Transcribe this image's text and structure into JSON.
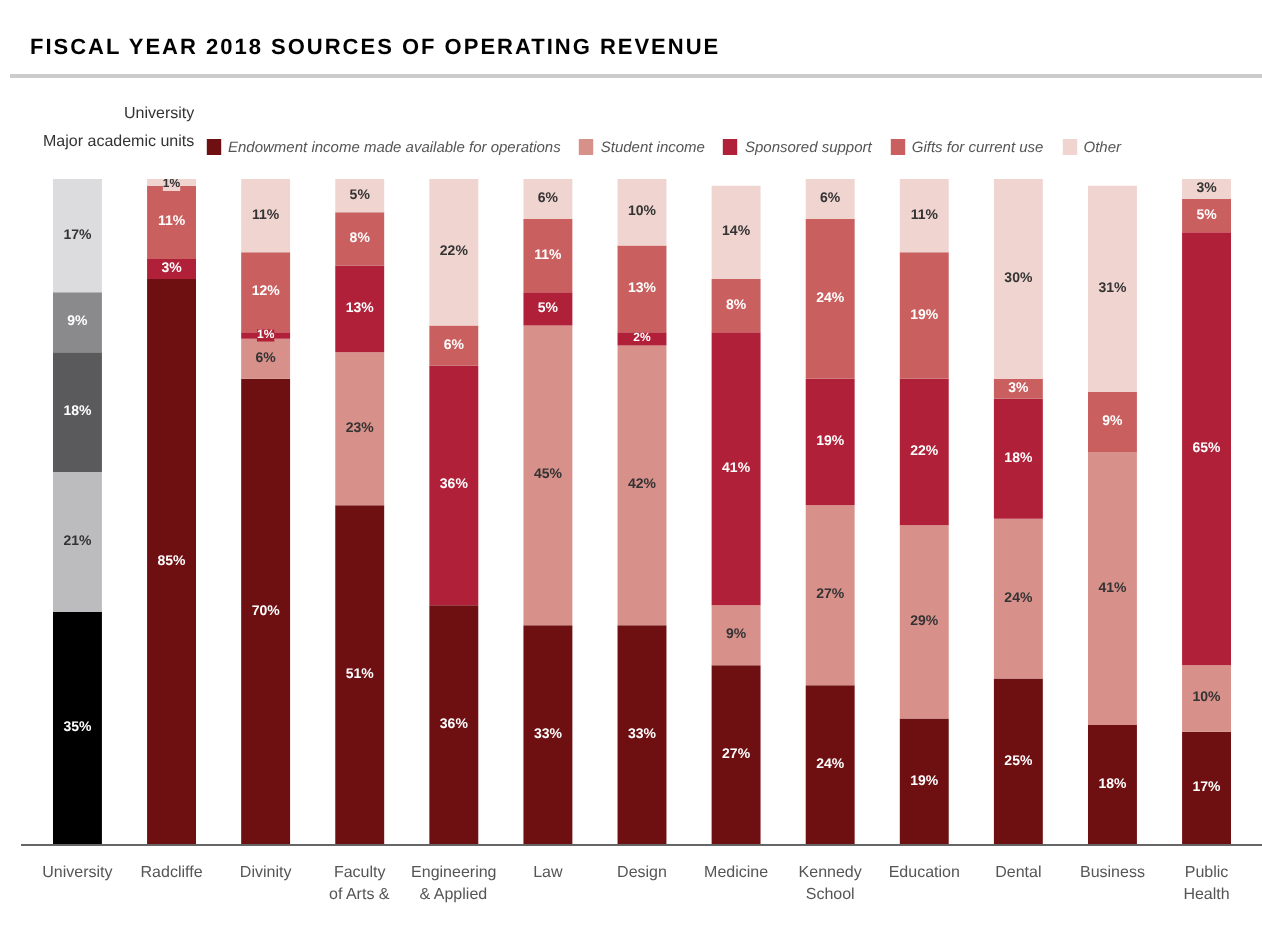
{
  "chart_data": {
    "type": "bar",
    "stacked": true,
    "title": "FISCAL YEAR 2018 SOURCES OF OPERATING REVENUE",
    "annotations": [
      "University",
      "Major academic units"
    ],
    "legend": "top",
    "tick_labels": "x",
    "grid": false,
    "ylim": [
      0,
      100
    ],
    "categories": [
      "University",
      "Radcliffe",
      "Divinity",
      "Faculty\nof Arts &",
      "Engineering\n& Applied",
      "Law",
      "Design",
      "Medicine",
      "Kennedy\nSchool",
      "Education",
      "Dental",
      "Business",
      "Public\nHealth"
    ],
    "series": [
      {
        "name": "Endowment income made available for operations",
        "color": "#6e0f12",
        "colors": [
          "#000000",
          "#6e0f12",
          "#6e0f12",
          "#6e0f12",
          "#6e0f12",
          "#6e0f12",
          "#6e0f12",
          "#6e0f12",
          "#6e0f12",
          "#6e0f12",
          "#6e0f12",
          "#6e0f12",
          "#6e0f12"
        ],
        "values": [
          35,
          85,
          70,
          51,
          36,
          33,
          33,
          27,
          24,
          19,
          25,
          18,
          17
        ],
        "value_labels": [
          "35%",
          "85%",
          "70%",
          "51%",
          "36%",
          "33%",
          "33%",
          "27%",
          "24%",
          "19%",
          "25%",
          "18%",
          "17%"
        ]
      },
      {
        "name": "Student income",
        "color": "#d8908a",
        "colors": [
          "#bcbcbe",
          "#d8908a",
          "#d8908a",
          "#d8908a",
          "#d8908a",
          "#d8908a",
          "#d8908a",
          "#d8908a",
          "#d8908a",
          "#d8908a",
          "#d8908a",
          "#d8908a",
          "#d8908a"
        ],
        "values": [
          21,
          null,
          6,
          23,
          null,
          45,
          42,
          9,
          27,
          29,
          24,
          41,
          10
        ],
        "value_labels": [
          "21%",
          null,
          "6%",
          "23%",
          null,
          "45%",
          "42%",
          "9%",
          "27%",
          "29%",
          "24%",
          "41%",
          "10%"
        ]
      },
      {
        "name": "Sponsored support",
        "color": "#b02038",
        "colors": [
          "#5a5a5c",
          "#b02038",
          "#b02038",
          "#b02038",
          "#b02038",
          "#b02038",
          "#b02038",
          "#b02038",
          "#b02038",
          "#b02038",
          "#b02038",
          "#b02038",
          "#b02038"
        ],
        "values": [
          18,
          3,
          1,
          13,
          36,
          5,
          2,
          41,
          19,
          22,
          18,
          null,
          65
        ],
        "value_labels": [
          "18%",
          "3%",
          "1%",
          "13%",
          "36%",
          "5%",
          "2%",
          "41%",
          "19%",
          "22%",
          "18%",
          null,
          "65%"
        ]
      },
      {
        "name": "Gifts for current use",
        "color": "#c9605f",
        "colors": [
          "#8a8a8c",
          "#c9605f",
          "#c9605f",
          "#c9605f",
          "#c9605f",
          "#c9605f",
          "#c9605f",
          "#c9605f",
          "#c9605f",
          "#c9605f",
          "#c9605f",
          "#c9605f",
          "#c9605f"
        ],
        "values": [
          9,
          11,
          12,
          8,
          6,
          11,
          13,
          8,
          24,
          19,
          3,
          9,
          5
        ],
        "value_labels": [
          "9%",
          "11%",
          "12%",
          "8%",
          "6%",
          "11%",
          "13%",
          "8%",
          "24%",
          "19%",
          "3%",
          "9%",
          "5%"
        ]
      },
      {
        "name": "Other",
        "color": "#f0d4d0",
        "colors": [
          "#dcdcde",
          "#f0d4d0",
          "#f0d4d0",
          "#f0d4d0",
          "#f0d4d0",
          "#f0d4d0",
          "#f0d4d0",
          "#f0d4d0",
          "#f0d4d0",
          "#f0d4d0",
          "#f0d4d0",
          "#f0d4d0",
          "#f0d4d0"
        ],
        "values": [
          17,
          1,
          11,
          5,
          22,
          6,
          10,
          14,
          6,
          11,
          30,
          31,
          3
        ],
        "value_labels": [
          "17%",
          "1%",
          "11%",
          "5%",
          "22%",
          "6%",
          "10%",
          "14%",
          "6%",
          "11%",
          "30%",
          "31%",
          "3%"
        ]
      }
    ]
  }
}
